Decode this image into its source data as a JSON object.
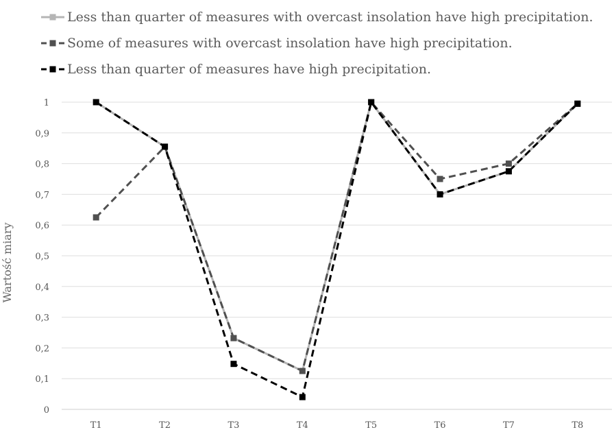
{
  "chart_data": {
    "type": "line",
    "title": "",
    "xlabel": "",
    "ylabel": "Wartość miary",
    "categories": [
      "T1",
      "T2",
      "T3",
      "T4",
      "T5",
      "T6",
      "T7",
      "T8"
    ],
    "y_ticks": [
      "0",
      "0,1",
      "0,2",
      "0,3",
      "0,4",
      "0,5",
      "0,6",
      "0,7",
      "0,8",
      "0,9",
      "1"
    ],
    "ylim": [
      0,
      1
    ],
    "grid": true,
    "legend_position": "top-left",
    "series": [
      {
        "name": "Less than quarter of measures with overcast insolation have high precipitation.",
        "color": "#b5b5b5",
        "line_style": "solid",
        "values": [
          1,
          0.855,
          0.232,
          0.125,
          1,
          0.7,
          0.775,
          0.995
        ]
      },
      {
        "name": "Some of measures with overcast insolation have high precipitation.",
        "color": "#505050",
        "line_style": "dashed",
        "values": [
          0.625,
          0.855,
          0.232,
          0.125,
          1,
          0.75,
          0.8,
          0.995
        ]
      },
      {
        "name": "Less than quarter of measures have high precipitation.",
        "color": "#000000",
        "line_style": "dashed",
        "values": [
          1,
          0.855,
          0.148,
          0.04,
          1,
          0.7,
          0.775,
          0.995
        ]
      }
    ]
  }
}
